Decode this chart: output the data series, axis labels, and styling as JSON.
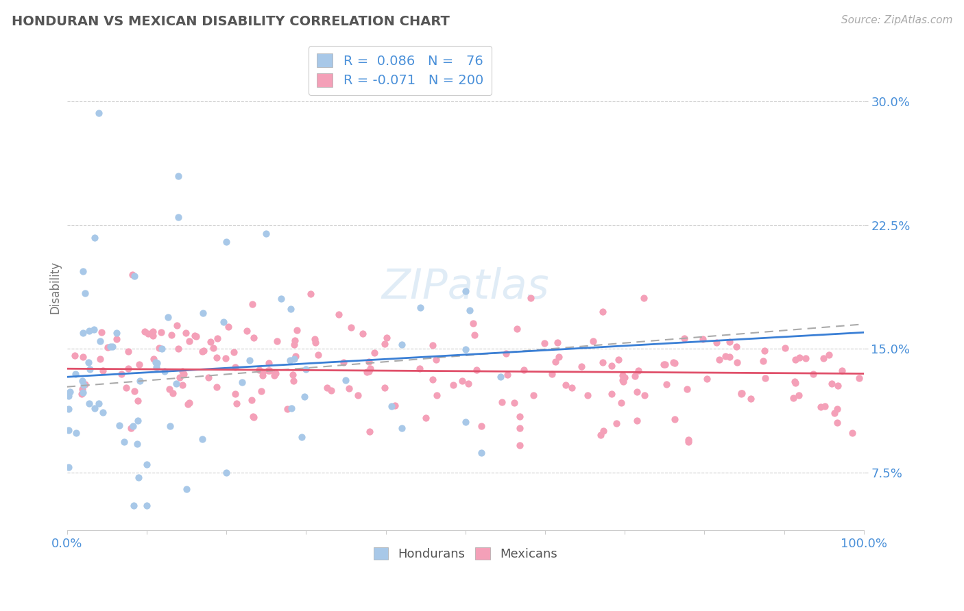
{
  "title": "HONDURAN VS MEXICAN DISABILITY CORRELATION CHART",
  "source": "Source: ZipAtlas.com",
  "ylabel": "Disability",
  "y_ticks": [
    0.075,
    0.15,
    0.225,
    0.3
  ],
  "xlim": [
    0.0,
    1.0
  ],
  "ylim": [
    0.04,
    0.335
  ],
  "honduran_color": "#a8c8e8",
  "mexican_color": "#f4a0b8",
  "honduran_line_color": "#3a7fd5",
  "mexican_line_color": "#e0506a",
  "dash_line_color": "#aaaaaa",
  "background_color": "#ffffff",
  "grid_color": "#cccccc",
  "title_color": "#555555",
  "axis_tick_color": "#4a90d9",
  "honduran_N": 76,
  "mexican_N": 200,
  "honduran_R": 0.086,
  "mexican_R": -0.071
}
